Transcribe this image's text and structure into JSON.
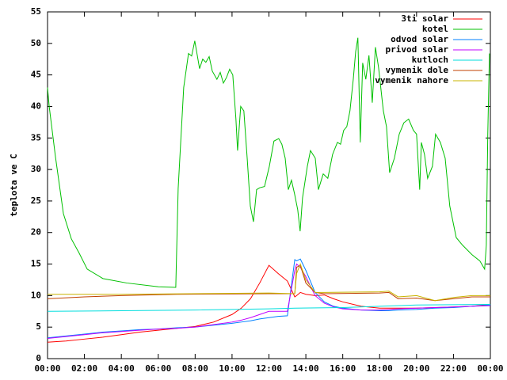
{
  "chart_data": {
    "type": "line",
    "ylabel": "teplota ve C",
    "xlim": [
      0,
      24
    ],
    "ylim": [
      0,
      55
    ],
    "xticks": [
      {
        "value": 0,
        "label": "00:00"
      },
      {
        "value": 2,
        "label": "02:00"
      },
      {
        "value": 4,
        "label": "04:00"
      },
      {
        "value": 6,
        "label": "06:00"
      },
      {
        "value": 8,
        "label": "08:00"
      },
      {
        "value": 10,
        "label": "10:00"
      },
      {
        "value": 12,
        "label": "12:00"
      },
      {
        "value": 14,
        "label": "14:00"
      },
      {
        "value": 16,
        "label": "16:00"
      },
      {
        "value": 18,
        "label": "18:00"
      },
      {
        "value": 20,
        "label": "20:00"
      },
      {
        "value": 22,
        "label": "22:00"
      },
      {
        "value": 24,
        "label": "00:00"
      }
    ],
    "yticks": [
      0,
      5,
      10,
      15,
      20,
      25,
      30,
      35,
      40,
      45,
      50,
      55
    ],
    "legend": "top-right",
    "series": [
      {
        "name": "3ti solar",
        "color": "#ff0000",
        "x": [
          0,
          1,
          2,
          3,
          4,
          5,
          6,
          7,
          8,
          9,
          10,
          10.5,
          11,
          11.5,
          12,
          12.5,
          13,
          13.4,
          13.5,
          13.7,
          14,
          14.5,
          15,
          15.5,
          16,
          17,
          18,
          18.5,
          19,
          20,
          21,
          22,
          23,
          24
        ],
        "values": [
          2.6,
          2.8,
          3.1,
          3.4,
          3.8,
          4.2,
          4.5,
          4.8,
          5.1,
          5.8,
          7.0,
          8.0,
          9.5,
          12,
          14.8,
          13.5,
          12.3,
          9.8,
          10.0,
          10.5,
          10.2,
          10.0,
          10.1,
          9.5,
          9,
          8.3,
          8,
          8,
          8,
          8,
          8.1,
          8.2,
          8.3,
          8.6
        ]
      },
      {
        "name": "kotel",
        "color": "#00c000",
        "x": [
          0,
          0.09,
          0.43,
          0.86,
          1.29,
          1.72,
          2.15,
          3.0,
          4.29,
          6.01,
          6.95,
          7.08,
          7.38,
          7.64,
          7.81,
          7.98,
          8.24,
          8.41,
          8.58,
          8.76,
          8.93,
          9.18,
          9.36,
          9.53,
          9.7,
          9.87,
          10.04,
          10.21,
          10.3,
          10.47,
          10.64,
          10.82,
          10.99,
          11.16,
          11.33,
          11.5,
          11.76,
          12.02,
          12.27,
          12.53,
          12.7,
          12.88,
          13.05,
          13.22,
          13.39,
          13.56,
          13.69,
          13.82,
          14.08,
          14.25,
          14.51,
          14.68,
          14.94,
          15.19,
          15.45,
          15.71,
          15.88,
          16.05,
          16.22,
          16.39,
          16.57,
          16.7,
          16.82,
          16.95,
          17.08,
          17.25,
          17.42,
          17.6,
          17.77,
          17.94,
          18.2,
          18.37,
          18.54,
          18.8,
          19.06,
          19.31,
          19.57,
          19.83,
          20.0,
          20.17,
          20.26,
          20.43,
          20.6,
          20.86,
          21.03,
          21.29,
          21.55,
          21.8,
          22.15,
          22.49,
          23.0,
          23.43,
          23.69,
          23.78,
          23.86,
          23.95
        ],
        "values": [
          43,
          40,
          32,
          23,
          19,
          16.7,
          14.2,
          12.7,
          12,
          11.4,
          11.3,
          27,
          43,
          48.4,
          48,
          50.4,
          46,
          47.5,
          47,
          47.9,
          45.6,
          44.3,
          45.4,
          43.7,
          44.6,
          45.9,
          45,
          38,
          33,
          40,
          39.3,
          31.8,
          24.2,
          21.7,
          26.8,
          27.1,
          27.3,
          30.5,
          34.5,
          34.9,
          34,
          31.8,
          26.8,
          28.3,
          26.1,
          23.6,
          20.2,
          25.5,
          30.5,
          33,
          31.8,
          26.8,
          29.3,
          28.6,
          32.4,
          34.3,
          34,
          36.2,
          36.8,
          39.3,
          44.3,
          48.7,
          50.9,
          34.3,
          46.9,
          44.3,
          48.1,
          40.6,
          49.4,
          46.2,
          39.3,
          36.8,
          29.5,
          31.8,
          35.6,
          37.4,
          38,
          36.2,
          35.6,
          26.8,
          34.3,
          32.4,
          28.6,
          30.5,
          35.6,
          34.3,
          31.8,
          24.2,
          19.2,
          18,
          16.5,
          15.5,
          14.2,
          18,
          35.6,
          48.4
        ]
      },
      {
        "name": "odvod solar",
        "color": "#0080ff",
        "x": [
          0,
          1,
          2,
          3,
          4,
          5,
          6,
          7,
          8,
          9,
          10,
          10.5,
          11,
          11.5,
          12,
          12.5,
          13,
          13.4,
          13.5,
          13.7,
          14,
          14.5,
          15,
          15.5,
          16,
          17,
          18,
          18.5,
          19,
          20,
          21,
          22,
          23,
          24
        ],
        "values": [
          3.3,
          3.6,
          3.9,
          4.2,
          4.4,
          4.6,
          4.7,
          4.9,
          5.0,
          5.3,
          5.6,
          5.8,
          6.0,
          6.3,
          6.5,
          6.7,
          6.8,
          15.7,
          15.5,
          15.8,
          14,
          10.5,
          9,
          8.3,
          8,
          7.7,
          7.6,
          7.6,
          7.7,
          7.8,
          8,
          8.1,
          8.3,
          8.5
        ]
      },
      {
        "name": "privod solar",
        "color": "#c000ff",
        "x": [
          0,
          1,
          2,
          3,
          4,
          5,
          6,
          7,
          8,
          9,
          10,
          10.5,
          11,
          11.5,
          12,
          12.5,
          13,
          13.4,
          13.5,
          13.7,
          14,
          14.5,
          15,
          15.5,
          16,
          17,
          18,
          18.5,
          19,
          20,
          21,
          22,
          23,
          24
        ],
        "values": [
          3.2,
          3.5,
          3.8,
          4.1,
          4.3,
          4.5,
          4.7,
          4.8,
          5.0,
          5.4,
          5.8,
          6.1,
          6.5,
          7.0,
          7.5,
          7.5,
          7.5,
          14,
          15,
          14.5,
          13,
          10,
          8.8,
          8.2,
          7.9,
          7.7,
          7.7,
          7.8,
          7.9,
          8,
          8.1,
          8.2,
          8.3,
          8.4
        ]
      },
      {
        "name": "kutloch",
        "color": "#00dddd",
        "x": [
          0,
          4,
          8,
          12,
          13.4,
          16,
          18,
          20,
          24
        ],
        "values": [
          7.5,
          7.6,
          7.7,
          7.9,
          8,
          8.1,
          8.3,
          8.5,
          8.6
        ]
      },
      {
        "name": "vymenik dole",
        "color": "#c04000",
        "x": [
          0,
          2,
          4,
          7,
          12,
          13.4,
          13.5,
          13.7,
          14,
          14.5,
          15,
          18,
          18.5,
          19,
          20,
          21,
          22,
          23,
          24
        ],
        "values": [
          9.5,
          9.8,
          10,
          10.2,
          10.3,
          10.3,
          14.5,
          14.8,
          12,
          10.5,
          10.3,
          10.4,
          10.5,
          9.5,
          9.6,
          9.2,
          9.5,
          9.8,
          9.8
        ]
      },
      {
        "name": "vymenik nahore",
        "color": "#c8b400",
        "x": [
          0,
          4,
          12,
          13.4,
          13.5,
          13.7,
          14,
          14.5,
          15,
          18,
          18.5,
          19,
          20,
          21,
          22,
          23,
          24
        ],
        "values": [
          10.2,
          10.2,
          10.4,
          10.3,
          13.5,
          15,
          12.5,
          10.5,
          10.5,
          10.6,
          10.7,
          9.8,
          10,
          9.2,
          9.7,
          10,
          10
        ]
      }
    ]
  }
}
